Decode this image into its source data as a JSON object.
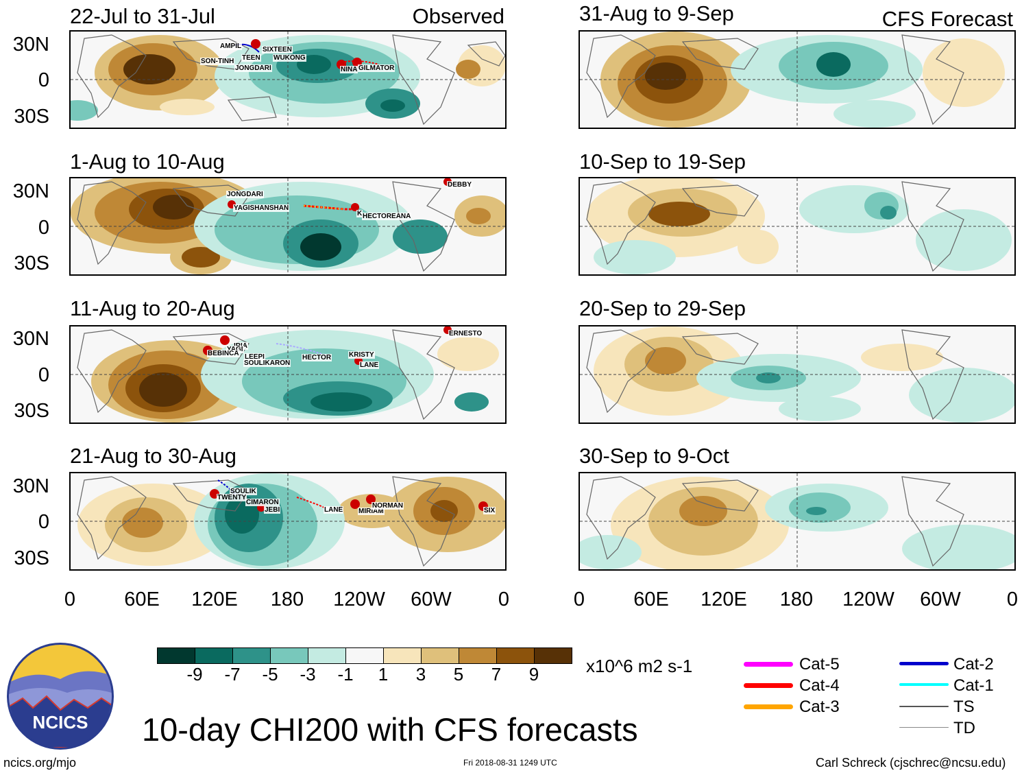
{
  "title": "10-day CHI200 with CFS forecasts",
  "columns": {
    "observed_label": "Observed",
    "forecast_label": "CFS Forecast"
  },
  "latitude_labels": [
    "30N",
    "0",
    "30S"
  ],
  "longitude_labels": [
    "0",
    "60E",
    "120E",
    "180",
    "120W",
    "60W",
    "0"
  ],
  "observed_panels": [
    {
      "period": "22-Jul to 31-Jul",
      "storms": [
        "AMPIL",
        "SIXTEEN",
        "WUKONG",
        "SON-TINH",
        "TEEN",
        "JONGDARI",
        "NINA",
        "GILMATOR"
      ]
    },
    {
      "period": "1-Aug to 10-Aug",
      "storms": [
        "JONGDARI",
        "YAGISHANSHAN",
        "K",
        "HECTOREANA",
        "DEBBY"
      ]
    },
    {
      "period": "11-Aug to 20-Aug",
      "storms": [
        "IRIA",
        "YAGI",
        "BEBINCA",
        "LEEPI",
        "SOULIKARON",
        "HECTOR",
        "KRISTY",
        "LANE",
        "ERNESTO"
      ]
    },
    {
      "period": "21-Aug to 30-Aug",
      "storms": [
        "SOULIK",
        "TWENTY",
        "CIMARON",
        "JEBI",
        "LANE",
        "MIRIAM",
        "NORMAN",
        "SIX"
      ]
    }
  ],
  "forecast_panels": [
    {
      "period": "31-Aug to 9-Sep"
    },
    {
      "period": "10-Sep to 19-Sep"
    },
    {
      "period": "20-Sep to 29-Sep"
    },
    {
      "period": "30-Sep to 9-Oct"
    }
  ],
  "colorbar": {
    "ticks": [
      "-9",
      "-7",
      "-5",
      "-3",
      "-1",
      "1",
      "3",
      "5",
      "7",
      "9"
    ],
    "colors": [
      "#01382f",
      "#0a6a5f",
      "#2e9289",
      "#78c8bb",
      "#c4ebe2",
      "#f7f7f7",
      "#f7e5bb",
      "#dfc07b",
      "#bf8836",
      "#8c530c",
      "#573106"
    ],
    "units": "x10^6 m2 s-1"
  },
  "legend": [
    {
      "label": "Cat-5",
      "color": "#ff00ff"
    },
    {
      "label": "Cat-4",
      "color": "#ff0000"
    },
    {
      "label": "Cat-3",
      "color": "#ffa500"
    },
    {
      "label": "Cat-2",
      "color": "#0000cc"
    },
    {
      "label": "Cat-1",
      "color": "#00ffff"
    },
    {
      "label": "TS",
      "color": "#555555"
    },
    {
      "label": "TD",
      "color": "#888888"
    }
  ],
  "logo_text": "NCICS",
  "footer": {
    "site": "ncics.org/mjo",
    "timestamp": "Fri 2018-08-31 1249 UTC",
    "credit": "Carl Schreck (cjschrec@ncsu.edu)"
  }
}
